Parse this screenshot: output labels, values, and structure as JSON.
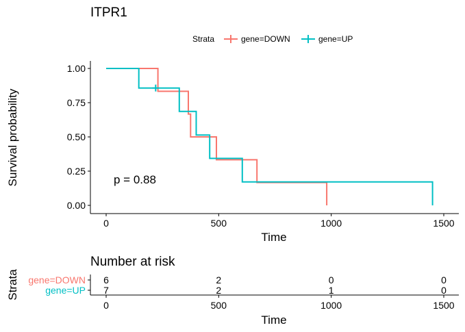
{
  "chart_data": {
    "type": "line",
    "title": "ITPR1",
    "legend": {
      "title": "Strata",
      "position": "top",
      "entries": [
        {
          "label": "gene=DOWN",
          "color": "#F8766D"
        },
        {
          "label": "gene=UP",
          "color": "#00BFC4"
        }
      ]
    },
    "xlabel": "Time",
    "ylabel": "Survival probability",
    "xlim": [
      0,
      1500
    ],
    "ylim": [
      0,
      1
    ],
    "x_ticks": [
      "0",
      "500",
      "1000",
      "1500"
    ],
    "y_ticks": [
      "0.00",
      "0.25",
      "0.50",
      "0.75",
      "1.00"
    ],
    "grid": false,
    "annotation": "p = 0.88",
    "series": [
      {
        "name": "gene=DOWN",
        "color": "#F8766D",
        "step_points": [
          [
            0,
            1.0
          ],
          [
            230,
            1.0
          ],
          [
            230,
            0.833
          ],
          [
            365,
            0.833
          ],
          [
            365,
            0.667
          ],
          [
            375,
            0.667
          ],
          [
            375,
            0.5
          ],
          [
            490,
            0.5
          ],
          [
            490,
            0.333
          ],
          [
            670,
            0.333
          ],
          [
            670,
            0.167
          ],
          [
            980,
            0.167
          ],
          [
            980,
            0.0
          ]
        ],
        "censor_marks": []
      },
      {
        "name": "gene=UP",
        "color": "#00BFC4",
        "step_points": [
          [
            0,
            1.0
          ],
          [
            145,
            1.0
          ],
          [
            145,
            0.857
          ],
          [
            325,
            0.857
          ],
          [
            325,
            0.686
          ],
          [
            400,
            0.686
          ],
          [
            400,
            0.514
          ],
          [
            460,
            0.514
          ],
          [
            460,
            0.343
          ],
          [
            605,
            0.343
          ],
          [
            605,
            0.171
          ],
          [
            1450,
            0.171
          ],
          [
            1450,
            0.0
          ]
        ],
        "censor_marks": [
          [
            220,
            0.857
          ]
        ]
      }
    ],
    "risk_table": {
      "title": "Number at risk",
      "ylabel": "Strata",
      "xlabel": "Time",
      "x_ticks": [
        "0",
        "500",
        "1000",
        "1500"
      ],
      "rows": [
        {
          "label": "gene=DOWN",
          "color": "#F8766D",
          "counts": [
            "6",
            "2",
            "0",
            "0"
          ]
        },
        {
          "label": "gene=UP",
          "color": "#00BFC4",
          "counts": [
            "7",
            "2",
            "1",
            "0"
          ]
        }
      ]
    }
  }
}
